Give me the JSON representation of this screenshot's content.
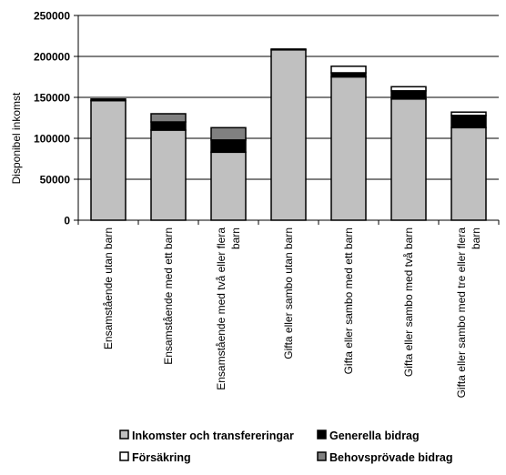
{
  "chart_data": {
    "type": "bar",
    "stacked": true,
    "title": "",
    "xlabel": "",
    "ylabel": "Disponibel inkomst",
    "ylim": [
      0,
      250000
    ],
    "yticks": [
      "0",
      "50000",
      "100000",
      "150000",
      "200000",
      "250000"
    ],
    "grid": true,
    "legend_position": "bottom",
    "categories": [
      [
        "Ensamstående utan barn"
      ],
      [
        "Ensamstående med ett barn"
      ],
      [
        "Ensamstående med två eller flera",
        "barn"
      ],
      [
        "Gifta eller sambo utan barn"
      ],
      [
        "Gifta eller sambo med ett barn"
      ],
      [
        "Gifta eller sambo med två barn"
      ],
      [
        "Gifta eller sambo med tre eller flera",
        "barn"
      ]
    ],
    "series": [
      {
        "name": "Inkomster och transfereringar",
        "color": "#c0c0c0",
        "values": [
          146000,
          110000,
          83000,
          208000,
          175000,
          148000,
          113000
        ]
      },
      {
        "name": "Generella bidrag",
        "color": "#000000",
        "values": [
          2000,
          10000,
          15000,
          0,
          5000,
          10000,
          15000
        ]
      },
      {
        "name": "Försäkring",
        "color": "#ffffff",
        "values": [
          0,
          0,
          0,
          1000,
          8000,
          5000,
          4000
        ]
      },
      {
        "name": "Behovsprövade bidrag",
        "color": "#808080",
        "values": [
          0,
          10000,
          15000,
          0,
          0,
          0,
          0
        ]
      }
    ]
  }
}
